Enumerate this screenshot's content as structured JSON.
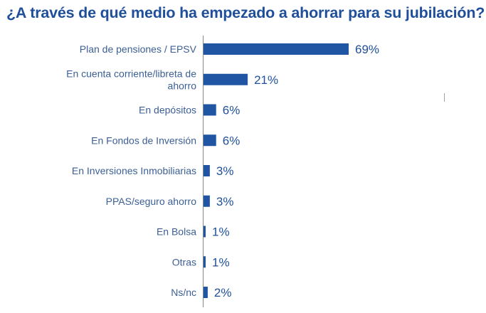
{
  "chart_data": {
    "type": "bar",
    "orientation": "horizontal",
    "title": "¿A través de qué medio ha empezado a ahorrar para su jubilación?",
    "categories": [
      "Plan de pensiones / EPSV",
      [
        "En cuenta corriente/libreta de",
        "ahorro"
      ],
      "En depósitos",
      "En Fondos de Inversión",
      "En Inversiones Inmobiliarias",
      "PPAS/seguro ahorro",
      "En Bolsa",
      "Otras",
      "Ns/nc"
    ],
    "values": [
      69,
      21,
      6,
      6,
      3,
      3,
      1,
      1,
      2
    ],
    "value_labels": [
      "69%",
      "21%",
      "6%",
      "6%",
      "3%",
      "3%",
      "1%",
      "1%",
      "2%"
    ],
    "unit": "%",
    "xlim": [
      0,
      69
    ],
    "xlabel": "",
    "ylabel": "",
    "grid": false,
    "legend": "none",
    "colors": {
      "bar": "#1f55a3",
      "title": "#1f4f9a",
      "category_text": "#3c5f95",
      "value_text": "#1f4f9a",
      "axis": "#888888"
    }
  }
}
